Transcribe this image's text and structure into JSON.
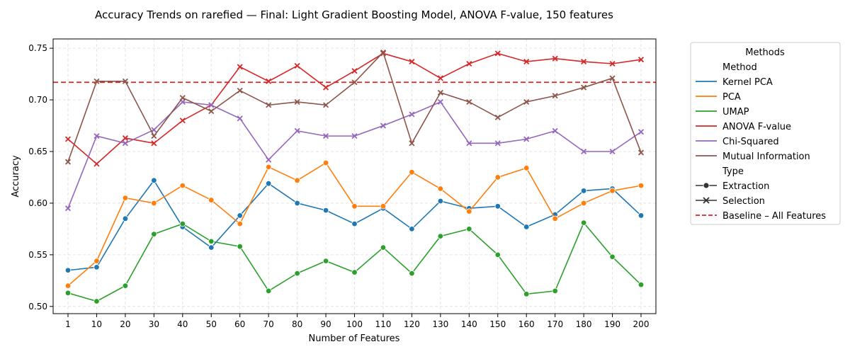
{
  "chart_data": {
    "type": "line",
    "title": "Accuracy Trends on rarefied — Final: Light Gradient Boosting Model, ANOVA F-value, 150 features",
    "xlabel": "Number of Features",
    "ylabel": "Accuracy",
    "categories": [
      "1",
      "10",
      "20",
      "30",
      "40",
      "50",
      "60",
      "70",
      "80",
      "90",
      "100",
      "110",
      "120",
      "130",
      "140",
      "150",
      "160",
      "170",
      "180",
      "190",
      "200"
    ],
    "ylim": [
      0.493,
      0.759
    ],
    "yticks": [
      "0.50",
      "0.55",
      "0.60",
      "0.65",
      "0.70",
      "0.75"
    ],
    "grid": true,
    "legend": {
      "title": "Methods",
      "placement": "outside-right",
      "method_header": "Method",
      "type_header": "Type",
      "type_entries": [
        {
          "label": "Extraction",
          "marker": "circle"
        },
        {
          "label": "Selection",
          "marker": "x"
        }
      ],
      "baseline_label": "Baseline – All Features"
    },
    "baseline": {
      "value": 0.717,
      "color": "#d62728"
    },
    "series": [
      {
        "name": "Kernel PCA",
        "type": "Extraction",
        "marker": "circle",
        "color": "#1f77b4",
        "values": [
          0.535,
          0.538,
          0.585,
          0.622,
          0.577,
          0.557,
          0.588,
          0.619,
          0.6,
          0.593,
          0.58,
          0.595,
          0.575,
          0.602,
          0.595,
          0.597,
          0.577,
          0.589,
          0.612,
          0.614,
          0.588
        ]
      },
      {
        "name": "PCA",
        "type": "Extraction",
        "marker": "circle",
        "color": "#ff7f0e",
        "values": [
          0.52,
          0.544,
          0.605,
          0.6,
          0.617,
          0.603,
          0.58,
          0.635,
          0.622,
          0.639,
          0.597,
          0.597,
          0.63,
          0.614,
          0.592,
          0.625,
          0.634,
          0.585,
          0.6,
          0.612,
          0.617
        ]
      },
      {
        "name": "UMAP",
        "type": "Extraction",
        "marker": "circle",
        "color": "#2ca02c",
        "values": [
          0.513,
          0.505,
          0.52,
          0.57,
          0.58,
          0.563,
          0.558,
          0.515,
          0.532,
          0.544,
          0.533,
          0.557,
          0.532,
          0.568,
          0.575,
          0.55,
          0.512,
          0.515,
          0.581,
          0.548,
          0.521
        ]
      },
      {
        "name": "ANOVA F-value",
        "type": "Selection",
        "marker": "x",
        "color": "#d62728",
        "values": [
          0.662,
          0.638,
          0.663,
          0.658,
          0.68,
          0.695,
          0.732,
          0.718,
          0.733,
          0.712,
          0.728,
          0.745,
          0.737,
          0.721,
          0.735,
          0.745,
          0.737,
          0.74,
          0.737,
          0.735,
          0.739
        ]
      },
      {
        "name": "Chi-Squared",
        "type": "Selection",
        "marker": "x",
        "color": "#9467bd",
        "values": [
          0.595,
          0.665,
          0.658,
          0.671,
          0.698,
          0.695,
          0.682,
          0.642,
          0.67,
          0.665,
          0.665,
          0.675,
          0.686,
          0.698,
          0.658,
          0.658,
          0.662,
          0.67,
          0.65,
          0.65,
          0.669
        ]
      },
      {
        "name": "Mutual Information",
        "type": "Selection",
        "marker": "x",
        "color": "#8c564b",
        "values": [
          0.64,
          0.718,
          0.718,
          0.665,
          0.702,
          0.689,
          0.709,
          0.695,
          0.698,
          0.695,
          0.717,
          0.746,
          0.658,
          0.707,
          0.698,
          0.683,
          0.698,
          0.704,
          0.712,
          0.721,
          0.649
        ]
      }
    ]
  }
}
